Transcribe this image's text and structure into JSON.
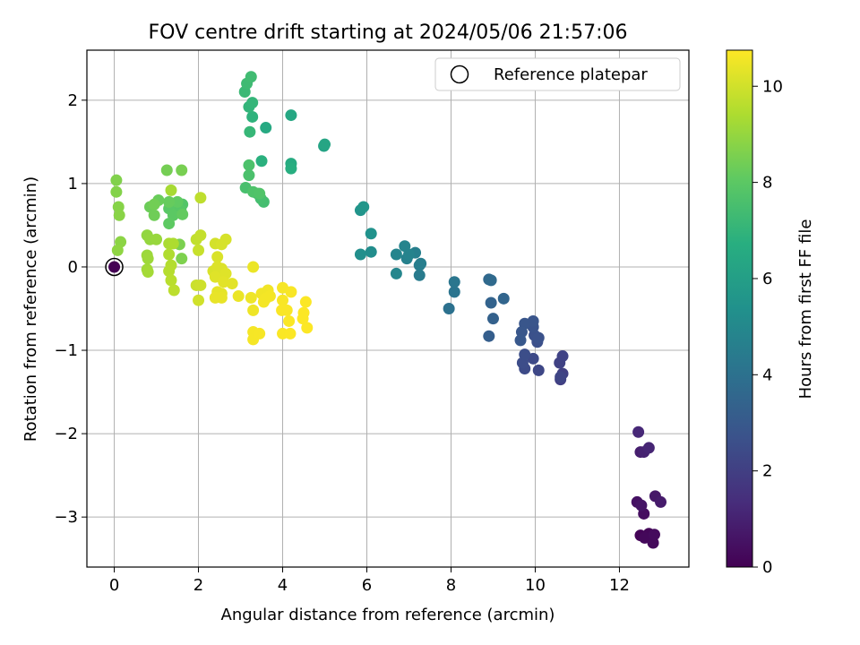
{
  "chart_data": {
    "type": "scatter",
    "title": "FOV centre drift starting at 2024/05/06 21:57:06",
    "xlabel": "Angular distance from reference (arcmin)",
    "ylabel": "Rotation from reference (arcmin)",
    "xlim": [
      -0.65,
      13.65
    ],
    "ylim": [
      -3.6,
      2.6
    ],
    "xticks": [
      0,
      2,
      4,
      6,
      8,
      10,
      12
    ],
    "yticks": [
      -3,
      -2,
      -1,
      0,
      1,
      2
    ],
    "grid": true,
    "legend": {
      "placement": "top-right",
      "entries": [
        "Reference platepar"
      ]
    },
    "colorbar": {
      "label": "Hours from first FF file",
      "range": [
        0,
        10.75
      ],
      "ticks": [
        0,
        2,
        4,
        6,
        8,
        10
      ],
      "colormap": "viridis"
    },
    "reference_point": {
      "x": 0,
      "y": 0,
      "label": "Reference platepar"
    },
    "points": [
      {
        "x": 12.5,
        "y": -3.22,
        "h": 0.1
      },
      {
        "x": 12.7,
        "y": -3.2,
        "h": 0.15
      },
      {
        "x": 12.6,
        "y": -3.25,
        "h": 0.2
      },
      {
        "x": 12.8,
        "y": -3.31,
        "h": 0.25
      },
      {
        "x": 12.83,
        "y": -3.21,
        "h": 0.3
      },
      {
        "x": 12.58,
        "y": -2.96,
        "h": 0.4
      },
      {
        "x": 12.42,
        "y": -2.82,
        "h": 0.5
      },
      {
        "x": 12.52,
        "y": -2.86,
        "h": 0.6
      },
      {
        "x": 12.85,
        "y": -2.75,
        "h": 0.7
      },
      {
        "x": 12.98,
        "y": -2.82,
        "h": 0.8
      },
      {
        "x": 12.5,
        "y": -2.22,
        "h": 0.9
      },
      {
        "x": 12.58,
        "y": -2.22,
        "h": 1.0
      },
      {
        "x": 12.7,
        "y": -2.17,
        "h": 1.1
      },
      {
        "x": 12.45,
        "y": -1.98,
        "h": 1.2
      },
      {
        "x": 10.6,
        "y": -1.35,
        "h": 2.0
      },
      {
        "x": 10.65,
        "y": -1.28,
        "h": 2.05
      },
      {
        "x": 10.58,
        "y": -1.15,
        "h": 2.1
      },
      {
        "x": 10.65,
        "y": -1.07,
        "h": 2.15
      },
      {
        "x": 10.6,
        "y": -1.32,
        "h": 2.2
      },
      {
        "x": 10.08,
        "y": -1.24,
        "h": 2.3
      },
      {
        "x": 9.95,
        "y": -1.1,
        "h": 2.4
      },
      {
        "x": 9.75,
        "y": -1.22,
        "h": 2.45
      },
      {
        "x": 9.7,
        "y": -1.15,
        "h": 2.5
      },
      {
        "x": 9.75,
        "y": -1.05,
        "h": 2.55
      },
      {
        "x": 10.05,
        "y": -0.9,
        "h": 2.6
      },
      {
        "x": 9.98,
        "y": -0.82,
        "h": 2.65
      },
      {
        "x": 10.08,
        "y": -0.85,
        "h": 2.7
      },
      {
        "x": 9.95,
        "y": -0.72,
        "h": 2.75
      },
      {
        "x": 9.95,
        "y": -0.65,
        "h": 2.8
      },
      {
        "x": 9.75,
        "y": -0.68,
        "h": 2.85
      },
      {
        "x": 9.68,
        "y": -0.78,
        "h": 2.9
      },
      {
        "x": 9.65,
        "y": -0.88,
        "h": 2.95
      },
      {
        "x": 8.9,
        "y": -0.83,
        "h": 3.2
      },
      {
        "x": 9.0,
        "y": -0.62,
        "h": 3.3
      },
      {
        "x": 8.95,
        "y": -0.43,
        "h": 3.4
      },
      {
        "x": 9.25,
        "y": -0.38,
        "h": 3.5
      },
      {
        "x": 8.9,
        "y": -0.15,
        "h": 3.6
      },
      {
        "x": 8.95,
        "y": -0.16,
        "h": 3.7
      },
      {
        "x": 7.95,
        "y": -0.5,
        "h": 4.0
      },
      {
        "x": 8.08,
        "y": -0.3,
        "h": 4.1
      },
      {
        "x": 8.08,
        "y": -0.18,
        "h": 4.2
      },
      {
        "x": 7.25,
        "y": -0.1,
        "h": 4.4
      },
      {
        "x": 7.25,
        "y": 0.02,
        "h": 4.5
      },
      {
        "x": 7.28,
        "y": 0.04,
        "h": 4.55
      },
      {
        "x": 7.15,
        "y": 0.17,
        "h": 4.6
      },
      {
        "x": 6.95,
        "y": 0.1,
        "h": 4.7
      },
      {
        "x": 7.0,
        "y": 0.15,
        "h": 4.75
      },
      {
        "x": 6.9,
        "y": 0.25,
        "h": 4.8
      },
      {
        "x": 6.7,
        "y": 0.15,
        "h": 4.85
      },
      {
        "x": 6.7,
        "y": -0.08,
        "h": 4.9
      },
      {
        "x": 6.1,
        "y": 0.18,
        "h": 5.2
      },
      {
        "x": 5.85,
        "y": 0.15,
        "h": 5.3
      },
      {
        "x": 6.1,
        "y": 0.4,
        "h": 5.4
      },
      {
        "x": 5.85,
        "y": 0.68,
        "h": 5.5
      },
      {
        "x": 5.92,
        "y": 0.72,
        "h": 5.6
      },
      {
        "x": 4.98,
        "y": 1.45,
        "h": 6.2
      },
      {
        "x": 5.0,
        "y": 1.47,
        "h": 6.3
      },
      {
        "x": 4.2,
        "y": 1.82,
        "h": 6.4
      },
      {
        "x": 3.6,
        "y": 1.67,
        "h": 6.5
      },
      {
        "x": 4.2,
        "y": 1.24,
        "h": 6.6
      },
      {
        "x": 4.2,
        "y": 1.18,
        "h": 6.7
      },
      {
        "x": 3.5,
        "y": 1.27,
        "h": 6.8
      },
      {
        "x": 3.28,
        "y": 1.8,
        "h": 6.9
      },
      {
        "x": 3.2,
        "y": 1.92,
        "h": 7.0
      },
      {
        "x": 3.28,
        "y": 1.97,
        "h": 7.05
      },
      {
        "x": 3.22,
        "y": 1.62,
        "h": 7.1
      },
      {
        "x": 3.1,
        "y": 2.1,
        "h": 7.2
      },
      {
        "x": 3.15,
        "y": 2.2,
        "h": 7.3
      },
      {
        "x": 3.25,
        "y": 2.28,
        "h": 7.35
      },
      {
        "x": 3.4,
        "y": 0.88,
        "h": 7.4
      },
      {
        "x": 3.55,
        "y": 0.78,
        "h": 7.45
      },
      {
        "x": 3.48,
        "y": 0.82,
        "h": 7.5
      },
      {
        "x": 3.12,
        "y": 0.95,
        "h": 7.55
      },
      {
        "x": 3.2,
        "y": 1.1,
        "h": 7.6
      },
      {
        "x": 3.2,
        "y": 1.22,
        "h": 7.65
      },
      {
        "x": 3.3,
        "y": 0.9,
        "h": 7.7
      },
      {
        "x": 3.45,
        "y": 0.88,
        "h": 7.75
      },
      {
        "x": 1.62,
        "y": 0.75,
        "h": 7.8
      },
      {
        "x": 1.5,
        "y": 0.72,
        "h": 7.85
      },
      {
        "x": 1.58,
        "y": 0.68,
        "h": 7.9
      },
      {
        "x": 1.3,
        "y": 0.7,
        "h": 7.95
      },
      {
        "x": 1.4,
        "y": 0.62,
        "h": 8.0
      },
      {
        "x": 1.3,
        "y": 0.52,
        "h": 8.05
      },
      {
        "x": 1.5,
        "y": 0.78,
        "h": 8.1
      },
      {
        "x": 1.62,
        "y": 0.63,
        "h": 8.15
      },
      {
        "x": 1.3,
        "y": 0.78,
        "h": 8.2
      },
      {
        "x": 1.05,
        "y": 0.8,
        "h": 8.25
      },
      {
        "x": 0.85,
        "y": 0.72,
        "h": 8.3
      },
      {
        "x": 0.95,
        "y": 0.62,
        "h": 8.35
      },
      {
        "x": 0.95,
        "y": 0.75,
        "h": 8.4
      },
      {
        "x": 1.25,
        "y": 1.16,
        "h": 8.45
      },
      {
        "x": 1.6,
        "y": 1.16,
        "h": 8.5
      },
      {
        "x": 1.55,
        "y": 0.27,
        "h": 8.55
      },
      {
        "x": 1.6,
        "y": 0.1,
        "h": 8.6
      },
      {
        "x": 0.05,
        "y": 1.04,
        "h": 8.65
      },
      {
        "x": 0.05,
        "y": 0.9,
        "h": 8.7
      },
      {
        "x": 0.1,
        "y": 0.72,
        "h": 8.75
      },
      {
        "x": 0.12,
        "y": 0.62,
        "h": 8.8
      },
      {
        "x": 0.15,
        "y": 0.3,
        "h": 8.85
      },
      {
        "x": 0.08,
        "y": 0.2,
        "h": 8.9
      },
      {
        "x": 0.78,
        "y": 0.38,
        "h": 8.95
      },
      {
        "x": 0.85,
        "y": 0.33,
        "h": 9.0
      },
      {
        "x": 1.0,
        "y": 0.33,
        "h": 9.05
      },
      {
        "x": 0.78,
        "y": 0.14,
        "h": 9.1
      },
      {
        "x": 0.8,
        "y": 0.1,
        "h": 9.15
      },
      {
        "x": 0.78,
        "y": -0.03,
        "h": 9.2
      },
      {
        "x": 0.8,
        "y": -0.06,
        "h": 9.25
      },
      {
        "x": 1.35,
        "y": 0.92,
        "h": 9.3
      },
      {
        "x": 1.3,
        "y": 0.28,
        "h": 9.35
      },
      {
        "x": 1.4,
        "y": 0.28,
        "h": 9.4
      },
      {
        "x": 1.3,
        "y": 0.15,
        "h": 9.45
      },
      {
        "x": 1.35,
        "y": 0.02,
        "h": 9.5
      },
      {
        "x": 1.3,
        "y": -0.05,
        "h": 9.55
      },
      {
        "x": 1.35,
        "y": -0.16,
        "h": 9.6
      },
      {
        "x": 1.42,
        "y": -0.28,
        "h": 9.65
      },
      {
        "x": 2.05,
        "y": 0.83,
        "h": 9.7
      },
      {
        "x": 1.95,
        "y": 0.33,
        "h": 9.75
      },
      {
        "x": 2.05,
        "y": 0.38,
        "h": 9.8
      },
      {
        "x": 2.0,
        "y": 0.2,
        "h": 9.85
      },
      {
        "x": 1.95,
        "y": -0.22,
        "h": 9.9
      },
      {
        "x": 2.05,
        "y": -0.22,
        "h": 9.95
      },
      {
        "x": 2.0,
        "y": -0.4,
        "h": 10.0
      },
      {
        "x": 2.4,
        "y": 0.28,
        "h": 10.05
      },
      {
        "x": 2.55,
        "y": 0.27,
        "h": 10.1
      },
      {
        "x": 2.65,
        "y": 0.33,
        "h": 10.1
      },
      {
        "x": 2.45,
        "y": 0.12,
        "h": 10.15
      },
      {
        "x": 2.35,
        "y": -0.05,
        "h": 10.15
      },
      {
        "x": 2.45,
        "y": 0.0,
        "h": 10.2
      },
      {
        "x": 2.55,
        "y": -0.02,
        "h": 10.2
      },
      {
        "x": 2.65,
        "y": -0.08,
        "h": 10.25
      },
      {
        "x": 2.4,
        "y": -0.12,
        "h": 10.25
      },
      {
        "x": 2.6,
        "y": -0.18,
        "h": 10.3
      },
      {
        "x": 2.8,
        "y": -0.2,
        "h": 10.3
      },
      {
        "x": 2.45,
        "y": -0.3,
        "h": 10.35
      },
      {
        "x": 2.55,
        "y": -0.32,
        "h": 10.35
      },
      {
        "x": 2.4,
        "y": -0.37,
        "h": 10.4
      },
      {
        "x": 2.55,
        "y": -0.37,
        "h": 10.4
      },
      {
        "x": 2.95,
        "y": -0.35,
        "h": 10.45
      },
      {
        "x": 3.3,
        "y": 0.0,
        "h": 10.45
      },
      {
        "x": 3.25,
        "y": -0.37,
        "h": 10.5
      },
      {
        "x": 3.3,
        "y": -0.52,
        "h": 10.5
      },
      {
        "x": 3.5,
        "y": -0.32,
        "h": 10.55
      },
      {
        "x": 3.65,
        "y": -0.28,
        "h": 10.55
      },
      {
        "x": 3.6,
        "y": -0.38,
        "h": 10.6
      },
      {
        "x": 3.55,
        "y": -0.42,
        "h": 10.6
      },
      {
        "x": 3.7,
        "y": -0.35,
        "h": 10.6
      },
      {
        "x": 3.3,
        "y": -0.78,
        "h": 10.62
      },
      {
        "x": 3.3,
        "y": -0.87,
        "h": 10.62
      },
      {
        "x": 3.45,
        "y": -0.8,
        "h": 10.64
      },
      {
        "x": 4.0,
        "y": -0.25,
        "h": 10.64
      },
      {
        "x": 4.2,
        "y": -0.3,
        "h": 10.66
      },
      {
        "x": 4.0,
        "y": -0.4,
        "h": 10.66
      },
      {
        "x": 4.1,
        "y": -0.52,
        "h": 10.68
      },
      {
        "x": 3.98,
        "y": -0.52,
        "h": 10.68
      },
      {
        "x": 4.15,
        "y": -0.65,
        "h": 10.7
      },
      {
        "x": 4.0,
        "y": -0.8,
        "h": 10.7
      },
      {
        "x": 4.18,
        "y": -0.8,
        "h": 10.72
      },
      {
        "x": 4.55,
        "y": -0.42,
        "h": 10.72
      },
      {
        "x": 4.5,
        "y": -0.55,
        "h": 10.73
      },
      {
        "x": 4.48,
        "y": -0.62,
        "h": 10.73
      },
      {
        "x": 4.58,
        "y": -0.73,
        "h": 10.74
      },
      {
        "x": 0.0,
        "y": 0.0,
        "h": 0.0
      }
    ]
  }
}
